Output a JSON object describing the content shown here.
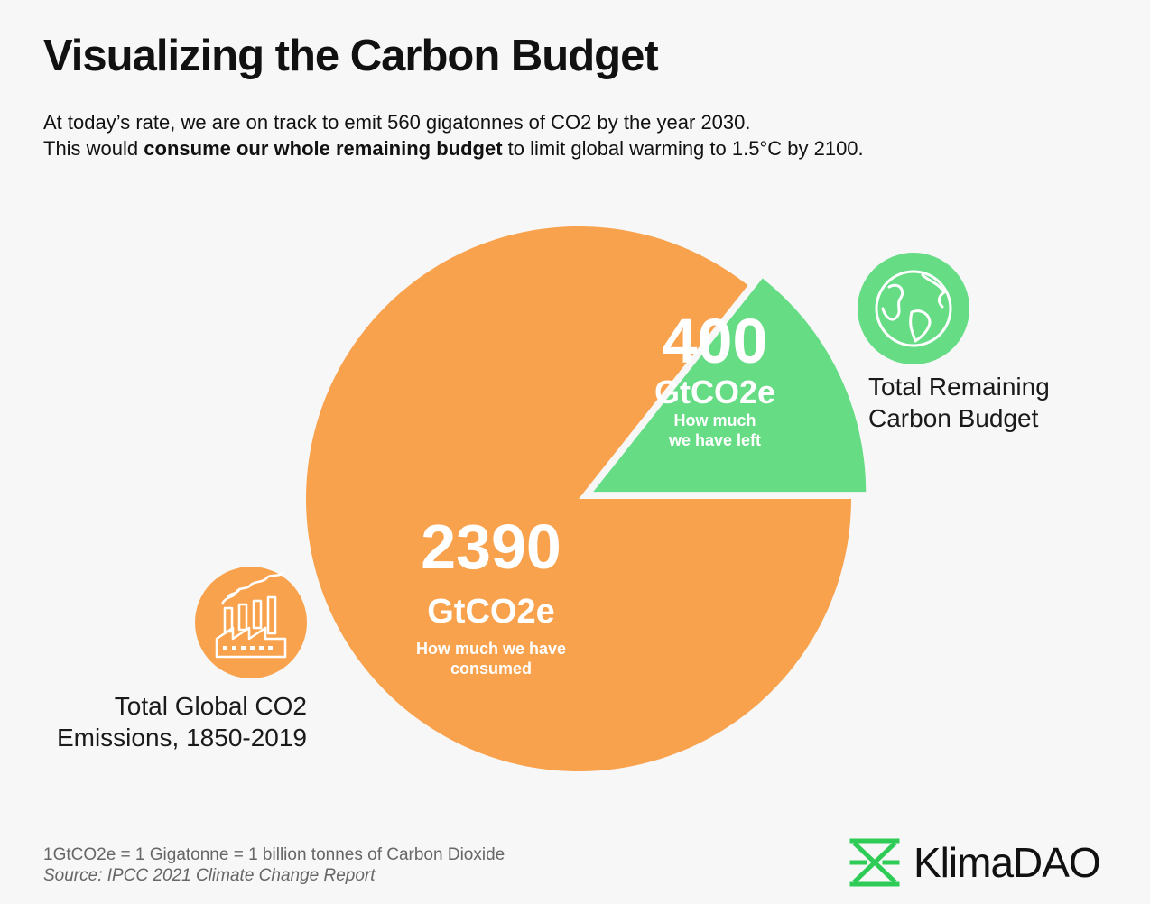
{
  "header": {
    "title": "Visualizing the Carbon Budget",
    "subtitle_line1": "At today’s rate, we are on track to emit 560 gigatonnes of CO2 by the year 2030.",
    "subtitle_line2_pre": "This would ",
    "subtitle_line2_bold": "consume our whole remaining budget",
    "subtitle_line2_post": " to limit global warming to 1.5°C by 2100."
  },
  "chart_data": {
    "type": "pie",
    "title": "Visualizing the Carbon Budget",
    "series": [
      {
        "value": 2390,
        "value_text": "2390",
        "unit": "GtCO2e",
        "caption_line1": "How much we have",
        "caption_line2": "consumed",
        "label_line1": "Total Global CO2",
        "label_line2": "Emissions, 1850-2019",
        "color": "#f9a24e",
        "icon": "factory-icon"
      },
      {
        "value": 400,
        "value_text": "400",
        "unit": "GtCO2e",
        "caption_line1": "How much",
        "caption_line2": "we have left",
        "label_line1": "Total Remaining",
        "label_line2": "Carbon Budget",
        "color": "#66dc84",
        "icon": "globe-icon",
        "exploded": true
      }
    ]
  },
  "footer": {
    "note": "1GtCO2e = 1 Gigatonne = 1 billion tonnes of Carbon Dioxide",
    "source": "Source: IPCC 2021 Climate Change Report",
    "brand": "KlimaDAO",
    "brand_color": "#2ecc57"
  }
}
